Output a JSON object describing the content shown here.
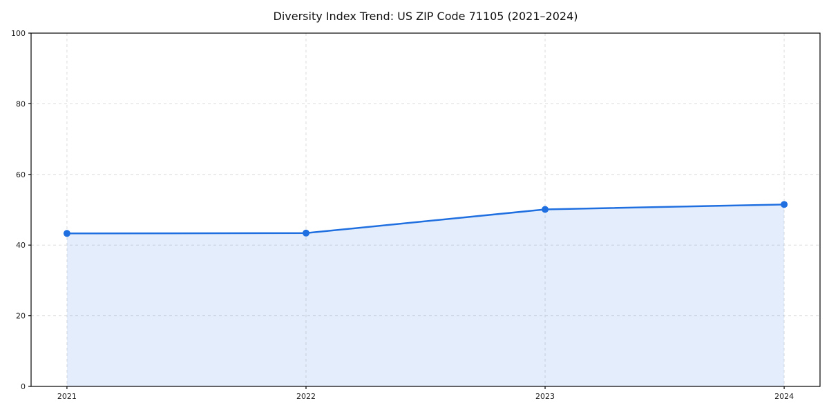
{
  "chart_data": {
    "type": "area",
    "title": "Diversity Index Trend: US ZIP Code 71105 (2021–2024)",
    "x": [
      "2021",
      "2022",
      "2023",
      "2024"
    ],
    "series": [
      {
        "name": "Diversity Index",
        "values": [
          43.3,
          43.4,
          50.1,
          51.5
        ]
      }
    ],
    "xlabel": "",
    "ylabel": "",
    "ylim": [
      0,
      100
    ],
    "yticks": [
      0,
      20,
      40,
      60,
      80,
      100
    ],
    "grid": "dashed, both axes",
    "legend": "none",
    "marker": "circle",
    "colors": {
      "line": "#1f6fe0",
      "marker": "#1f6fe0",
      "fill": "rgba(31,111,224,0.12)",
      "grid": "#dcdcdc",
      "spine": "#000000",
      "text": "#1a1a1a",
      "background": "#ffffff"
    }
  }
}
